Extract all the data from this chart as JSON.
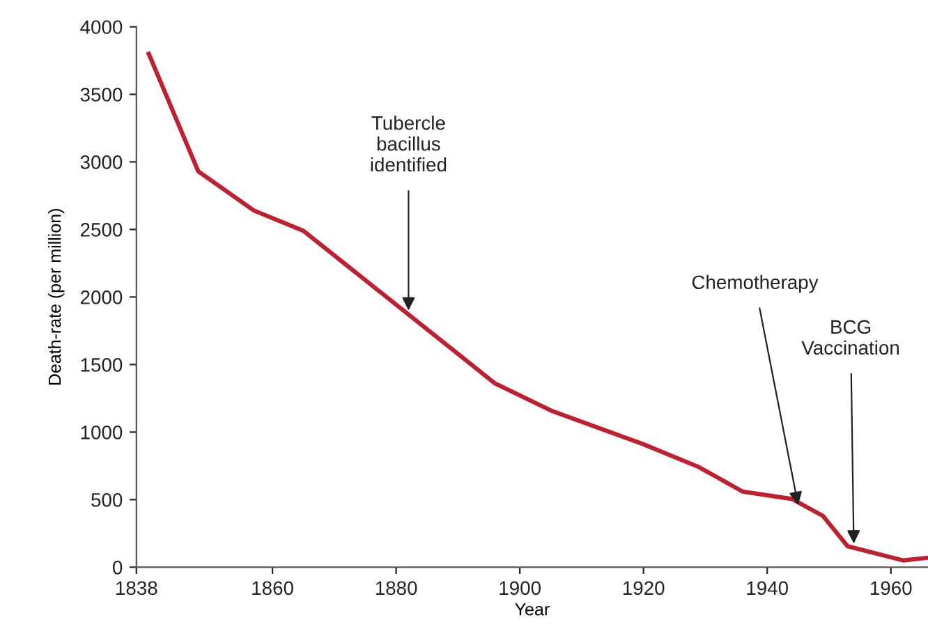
{
  "chart_data": {
    "type": "line",
    "xlabel": "Year",
    "ylabel": "Death-rate (per million)",
    "x": [
      1840,
      1848,
      1857,
      1865,
      1896,
      1905,
      1920,
      1929,
      1936,
      1944,
      1949,
      1953,
      1962,
      1966
    ],
    "series": [
      {
        "color": "#c01f2f",
        "values": [
          3800,
          2930,
          2640,
          2490,
          1360,
          1160,
          910,
          740,
          560,
          505,
          380,
          155,
          50,
          70
        ]
      }
    ],
    "xlim": [
      1838,
      1966
    ],
    "xticks": [
      1838,
      1860,
      1880,
      1900,
      1920,
      1940,
      1960
    ],
    "ylim": [
      0,
      4000
    ],
    "yticks": [
      0,
      500,
      1000,
      1500,
      2000,
      2500,
      3000,
      3500,
      4000
    ],
    "annotations": [
      {
        "text": "Tubercle\nbacillus\nidentified",
        "x": 1882,
        "y": 1900
      },
      {
        "text": "Chemotherapy",
        "x": 1945,
        "y": 460
      },
      {
        "text": "BCG\nVaccination",
        "x": 1954,
        "y": 175
      }
    ],
    "grid": false,
    "legend": false,
    "marker": "none",
    "line_style": "solid"
  }
}
